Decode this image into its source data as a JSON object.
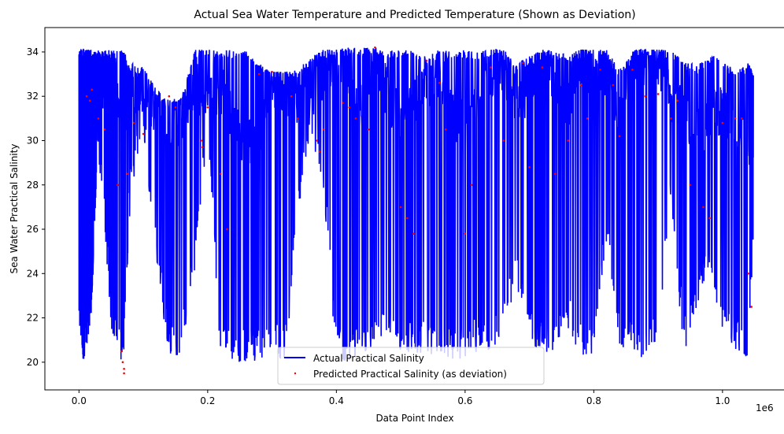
{
  "chart_data": {
    "type": "line",
    "title": "Actual Sea Water Temperature and Predicted Temperature (Shown as Deviation)",
    "xlabel": "Data Point Index",
    "ylabel": "Sea Water Practical Salinity",
    "x_offset_label": "1e6",
    "xlim": [
      -0.053,
      1.098
    ],
    "ylim": [
      18.75,
      35.1
    ],
    "x_ticks": [
      0.0,
      0.2,
      0.4,
      0.6,
      0.8,
      1.0
    ],
    "x_tick_labels": [
      "0.0",
      "0.2",
      "0.4",
      "0.6",
      "0.8",
      "1.0"
    ],
    "y_ticks": [
      20,
      22,
      24,
      26,
      28,
      30,
      32,
      34
    ],
    "y_tick_labels": [
      "20",
      "22",
      "24",
      "26",
      "28",
      "30",
      "32",
      "34"
    ],
    "grid": false,
    "legend_position": "lower center",
    "series": [
      {
        "name": "Actual Practical Salinity",
        "kind": "line",
        "color": "#0000ff",
        "x": [
          0.0,
          0.005,
          0.01,
          0.015,
          0.02,
          0.03,
          0.04,
          0.05,
          0.065,
          0.07,
          0.08,
          0.1,
          0.12,
          0.14,
          0.16,
          0.18,
          0.2,
          0.22,
          0.24,
          0.26,
          0.28,
          0.3,
          0.32,
          0.34,
          0.36,
          0.38,
          0.4,
          0.42,
          0.44,
          0.46,
          0.48,
          0.5,
          0.52,
          0.54,
          0.56,
          0.58,
          0.6,
          0.62,
          0.64,
          0.66,
          0.68,
          0.7,
          0.72,
          0.74,
          0.76,
          0.78,
          0.8,
          0.82,
          0.84,
          0.86,
          0.88,
          0.9,
          0.92,
          0.94,
          0.96,
          0.98,
          1.0,
          1.02,
          1.04,
          1.048
        ],
        "y_min": [
          22.0,
          20.1,
          20.2,
          21.0,
          22.5,
          29.5,
          26.0,
          21.3,
          20.1,
          20.2,
          27.5,
          30.3,
          24.5,
          20.1,
          20.4,
          24.0,
          30.5,
          20.1,
          20.0,
          20.0,
          20.1,
          20.4,
          20.0,
          26.0,
          30.5,
          27.5,
          20.0,
          20.1,
          20.2,
          20.5,
          21.0,
          20.3,
          20.4,
          20.4,
          20.2,
          20.1,
          20.2,
          20.5,
          20.5,
          21.3,
          23.5,
          21.0,
          20.2,
          20.3,
          21.5,
          20.2,
          20.1,
          25.5,
          20.2,
          20.5,
          20.1,
          21.0,
          27.0,
          20.3,
          22.5,
          24.0,
          21.0,
          20.5,
          20.0,
          25.5
        ],
        "y_max": [
          34.1,
          34.2,
          34.1,
          34.1,
          34.1,
          34.1,
          34.1,
          34.1,
          34.1,
          34.0,
          33.5,
          33.3,
          32.3,
          31.8,
          32.0,
          34.1,
          34.1,
          34.1,
          34.1,
          34.1,
          33.5,
          33.1,
          33.1,
          33.2,
          33.8,
          34.1,
          34.1,
          34.2,
          34.2,
          34.2,
          34.1,
          34.1,
          34.1,
          33.8,
          34.1,
          34.1,
          34.1,
          34.0,
          34.1,
          34.1,
          33.5,
          33.8,
          34.1,
          34.0,
          33.9,
          34.1,
          34.1,
          34.1,
          33.2,
          34.1,
          34.1,
          34.1,
          34.1,
          33.6,
          33.4,
          33.9,
          33.7,
          33.1,
          33.5,
          33.2
        ],
        "y_typical": [
          32.5,
          33.0,
          32.0,
          33.0,
          32.5,
          33.2,
          32.5,
          33.0,
          31.5,
          31.5,
          32.0,
          32.5,
          31.5,
          31.0,
          31.0,
          32.5,
          32.0,
          32.5,
          30.5,
          30.0,
          30.5,
          32.5,
          32.5,
          31.5,
          32.5,
          33.0,
          33.5,
          33.0,
          31.5,
          33.5,
          32.0,
          31.0,
          32.0,
          32.5,
          33.0,
          31.5,
          30.5,
          31.5,
          33.0,
          33.5,
          31.5,
          32.0,
          33.5,
          33.0,
          31.5,
          33.5,
          32.5,
          33.0,
          31.0,
          33.5,
          33.5,
          33.5,
          32.0,
          31.5,
          30.5,
          31.0,
          31.5,
          30.5,
          30.0,
          29.5
        ]
      },
      {
        "name": "Predicted Practical Salinity (as deviation)",
        "kind": "scatter",
        "color": "#ff0000",
        "points": [
          [
            0.012,
            32.0
          ],
          [
            0.017,
            31.8
          ],
          [
            0.02,
            32.3
          ],
          [
            0.03,
            31.0
          ],
          [
            0.04,
            30.5
          ],
          [
            0.06,
            28.0
          ],
          [
            0.066,
            20.5
          ],
          [
            0.068,
            20.0
          ],
          [
            0.07,
            19.7
          ],
          [
            0.07,
            19.5
          ],
          [
            0.075,
            28.5
          ],
          [
            0.085,
            30.8
          ],
          [
            0.1,
            30.3
          ],
          [
            0.14,
            32.0
          ],
          [
            0.15,
            31.5
          ],
          [
            0.19,
            30.0
          ],
          [
            0.192,
            29.7
          ],
          [
            0.2,
            31.5
          ],
          [
            0.22,
            28.5
          ],
          [
            0.23,
            26.0
          ],
          [
            0.28,
            33.0
          ],
          [
            0.3,
            33.1
          ],
          [
            0.33,
            32.0
          ],
          [
            0.34,
            31.0
          ],
          [
            0.37,
            30.0
          ],
          [
            0.374,
            29.5
          ],
          [
            0.38,
            30.5
          ],
          [
            0.41,
            31.7
          ],
          [
            0.42,
            31.5
          ],
          [
            0.43,
            31.0
          ],
          [
            0.45,
            30.5
          ],
          [
            0.46,
            34.2
          ],
          [
            0.5,
            27.0
          ],
          [
            0.51,
            26.5
          ],
          [
            0.52,
            25.8
          ],
          [
            0.54,
            33.6
          ],
          [
            0.56,
            32.6
          ],
          [
            0.57,
            30.5
          ],
          [
            0.6,
            25.8
          ],
          [
            0.61,
            28.0
          ],
          [
            0.64,
            33.3
          ],
          [
            0.66,
            30.0
          ],
          [
            0.69,
            33.5
          ],
          [
            0.7,
            28.8
          ],
          [
            0.72,
            33.3
          ],
          [
            0.74,
            28.5
          ],
          [
            0.76,
            30.0
          ],
          [
            0.78,
            32.5
          ],
          [
            0.79,
            31.0
          ],
          [
            0.81,
            33.2
          ],
          [
            0.83,
            32.5
          ],
          [
            0.84,
            30.2
          ],
          [
            0.86,
            33.2
          ],
          [
            0.88,
            32.0
          ],
          [
            0.9,
            32.1
          ],
          [
            0.92,
            31.0
          ],
          [
            0.93,
            31.8
          ],
          [
            0.95,
            28.0
          ],
          [
            0.97,
            27.0
          ],
          [
            0.98,
            26.5
          ],
          [
            1.0,
            30.8
          ],
          [
            1.02,
            31.0
          ],
          [
            1.03,
            31.0
          ],
          [
            1.04,
            24.0
          ],
          [
            1.045,
            22.5
          ]
        ]
      }
    ]
  }
}
